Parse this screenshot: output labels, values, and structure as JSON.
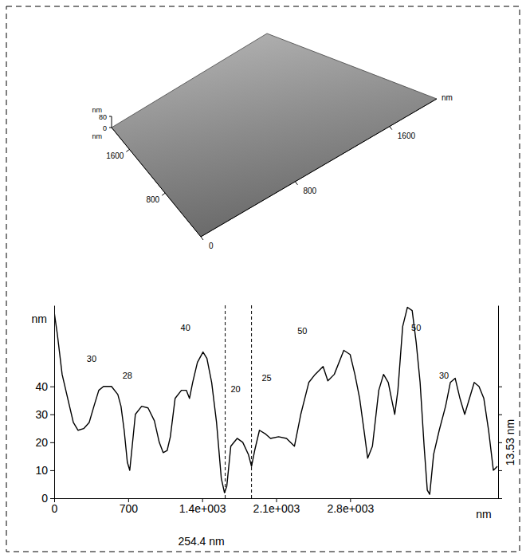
{
  "chart_data": [
    {
      "type": "surface",
      "x_label": "nm",
      "y_label": "nm",
      "z_label": "nm",
      "xlim": [
        0,
        2000
      ],
      "ylim": [
        0,
        2000
      ],
      "zlim": [
        0,
        80
      ],
      "xticks": [
        0,
        800,
        1600
      ],
      "yticks": [
        800,
        1600
      ],
      "zticks": [
        0,
        80
      ]
    },
    {
      "type": "line",
      "x_label": "nm",
      "y_label": "nm",
      "x": [
        0,
        30,
        75,
        128,
        181,
        226,
        279,
        331,
        376,
        422,
        467,
        542,
        602,
        632,
        662,
        692,
        715,
        738,
        768,
        828,
        888,
        948,
        994,
        1031,
        1069,
        1099,
        1144,
        1204,
        1250,
        1280,
        1310,
        1355,
        1408,
        1445,
        1490,
        1536,
        1581,
        1611,
        1633,
        1671,
        1731,
        1784,
        1837,
        1867,
        1897,
        1942,
        2002,
        2047,
        2123,
        2198,
        2273,
        2333,
        2409,
        2469,
        2544,
        2589,
        2650,
        2740,
        2800,
        2845,
        2890,
        2936,
        2966,
        3011,
        3071,
        3116,
        3161,
        3191,
        3222,
        3252,
        3297,
        3342,
        3387,
        3425,
        3462,
        3500,
        3530,
        3553,
        3590,
        3643,
        3703,
        3748,
        3794,
        3839,
        3884,
        3929,
        3974,
        4019,
        4065,
        4110,
        4155,
        4193
      ],
      "series": [
        {
          "color": "#000000",
          "values": [
            66.6,
            58.6,
            44.3,
            35.7,
            27.1,
            24.3,
            24.9,
            27.1,
            32.9,
            38.6,
            40,
            40,
            37.1,
            32.9,
            24.3,
            12.9,
            10,
            18.6,
            30,
            32.9,
            32.3,
            27.7,
            20,
            16.3,
            17.1,
            22,
            35.7,
            38.6,
            38.6,
            35.7,
            41.4,
            48.6,
            52.3,
            50,
            41.4,
            27.1,
            7.1,
            2,
            4.3,
            18.6,
            21.4,
            20,
            15.7,
            11.4,
            17.1,
            24.3,
            22.9,
            21.4,
            22,
            21.4,
            18.6,
            30,
            41.4,
            44.3,
            47.1,
            42,
            44.3,
            52.9,
            51.4,
            44.3,
            35.7,
            22.9,
            14.3,
            18.6,
            38.6,
            44.3,
            41.4,
            35.7,
            30,
            38.6,
            61.4,
            68.3,
            67.1,
            55.7,
            41.4,
            18.6,
            2.9,
            1.4,
            15.7,
            24.3,
            32.9,
            41.4,
            42.9,
            35.7,
            30,
            35.7,
            41.4,
            40,
            35.7,
            24.3,
            10,
            11.4
          ]
        }
      ],
      "xlim": [
        0,
        4200
      ],
      "ylim": [
        0,
        69
      ],
      "xticks": [
        0,
        700,
        {
          "value": 1400,
          "label": "1.4e+003"
        },
        {
          "value": 2100,
          "label": "2.1e+003"
        },
        {
          "value": 2800,
          "label": "2.8e+003"
        }
      ],
      "yticks": [
        0,
        10,
        20,
        30,
        40
      ],
      "annotations": [
        {
          "text": "30",
          "x": 354,
          "y": 50
        },
        {
          "text": "28",
          "x": 692,
          "y": 44
        },
        {
          "text": "40",
          "x": 1242,
          "y": 61
        },
        {
          "text": "20",
          "x": 1716,
          "y": 39
        },
        {
          "text": "25",
          "x": 2010,
          "y": 43
        },
        {
          "text": "50",
          "x": 2348,
          "y": 60
        },
        {
          "text": "50",
          "x": 3425,
          "y": 61
        },
        {
          "text": "30",
          "x": 3688,
          "y": 44
        }
      ],
      "cursors": [
        1618,
        1867
      ],
      "cursor_distance": "254.4 nm",
      "height_difference": "13.53 nm"
    }
  ]
}
